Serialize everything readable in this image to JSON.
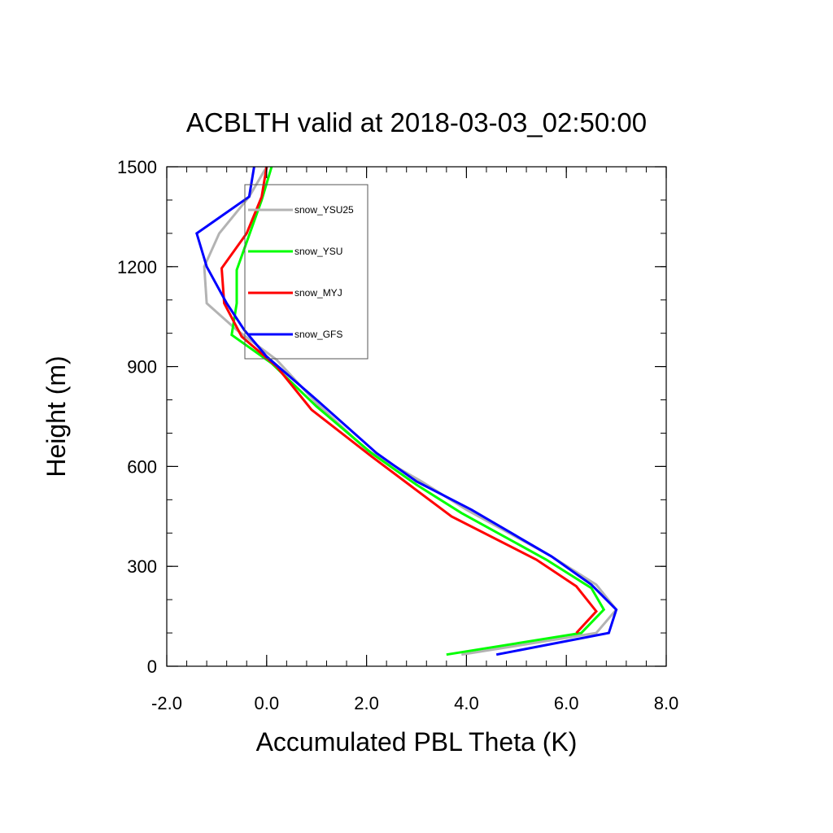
{
  "chart_data": {
    "type": "line",
    "title": "ACBLTH valid at 2018-03-03_02:50:00",
    "xlabel": "Accumulated PBL Theta (K)",
    "ylabel": "Height (m)",
    "xlim": [
      -2.0,
      8.0
    ],
    "ylim": [
      0,
      1500
    ],
    "xticks": [
      "-2.0",
      "0.0",
      "2.0",
      "4.0",
      "6.0",
      "8.0"
    ],
    "yticks": [
      "0",
      "300",
      "600",
      "900",
      "1200",
      "1500"
    ],
    "grid": false,
    "legend_position": "upper-left-inside",
    "series": [
      {
        "name": "snow_YSU25",
        "color": "#b3b3b3",
        "x": [
          3.9,
          6.6,
          7.0,
          6.6,
          5.7,
          4.0,
          3.1,
          2.0,
          1.0,
          0.2,
          -0.6,
          -1.2,
          -1.25,
          -0.95,
          -0.35,
          0.0
        ],
        "y": [
          35,
          100,
          170,
          245,
          330,
          470,
          555,
          650,
          790,
          920,
          1010,
          1090,
          1200,
          1300,
          1410,
          1500
        ]
      },
      {
        "name": "snow_YSU",
        "color": "#00ff00",
        "x": [
          3.6,
          6.3,
          6.75,
          6.5,
          5.6,
          3.9,
          3.0,
          2.1,
          1.0,
          0.1,
          -0.7,
          -0.6,
          -0.6,
          -0.1,
          0.1
        ],
        "y": [
          35,
          100,
          170,
          235,
          320,
          460,
          545,
          640,
          780,
          910,
          995,
          1090,
          1190,
          1400,
          1500
        ]
      },
      {
        "name": "snow_MYJ",
        "color": "#ff0000",
        "x": [
          6.2,
          6.6,
          6.2,
          5.4,
          3.7,
          2.9,
          2.1,
          0.9,
          0.2,
          -0.5,
          -0.85,
          -0.9,
          -0.4,
          -0.1,
          0.0
        ],
        "y": [
          100,
          165,
          240,
          320,
          450,
          540,
          630,
          770,
          900,
          990,
          1090,
          1195,
          1300,
          1410,
          1500
        ]
      },
      {
        "name": "snow_GFS",
        "color": "#0000ff",
        "x": [
          4.6,
          6.85,
          7.0,
          6.5,
          5.7,
          4.1,
          3.0,
          2.2,
          1.0,
          0.0,
          -0.45,
          -0.8,
          -1.2,
          -1.4,
          -0.35,
          -0.25
        ],
        "y": [
          35,
          100,
          170,
          245,
          330,
          470,
          555,
          640,
          800,
          930,
          1010,
          1090,
          1200,
          1300,
          1410,
          1500
        ]
      }
    ]
  }
}
